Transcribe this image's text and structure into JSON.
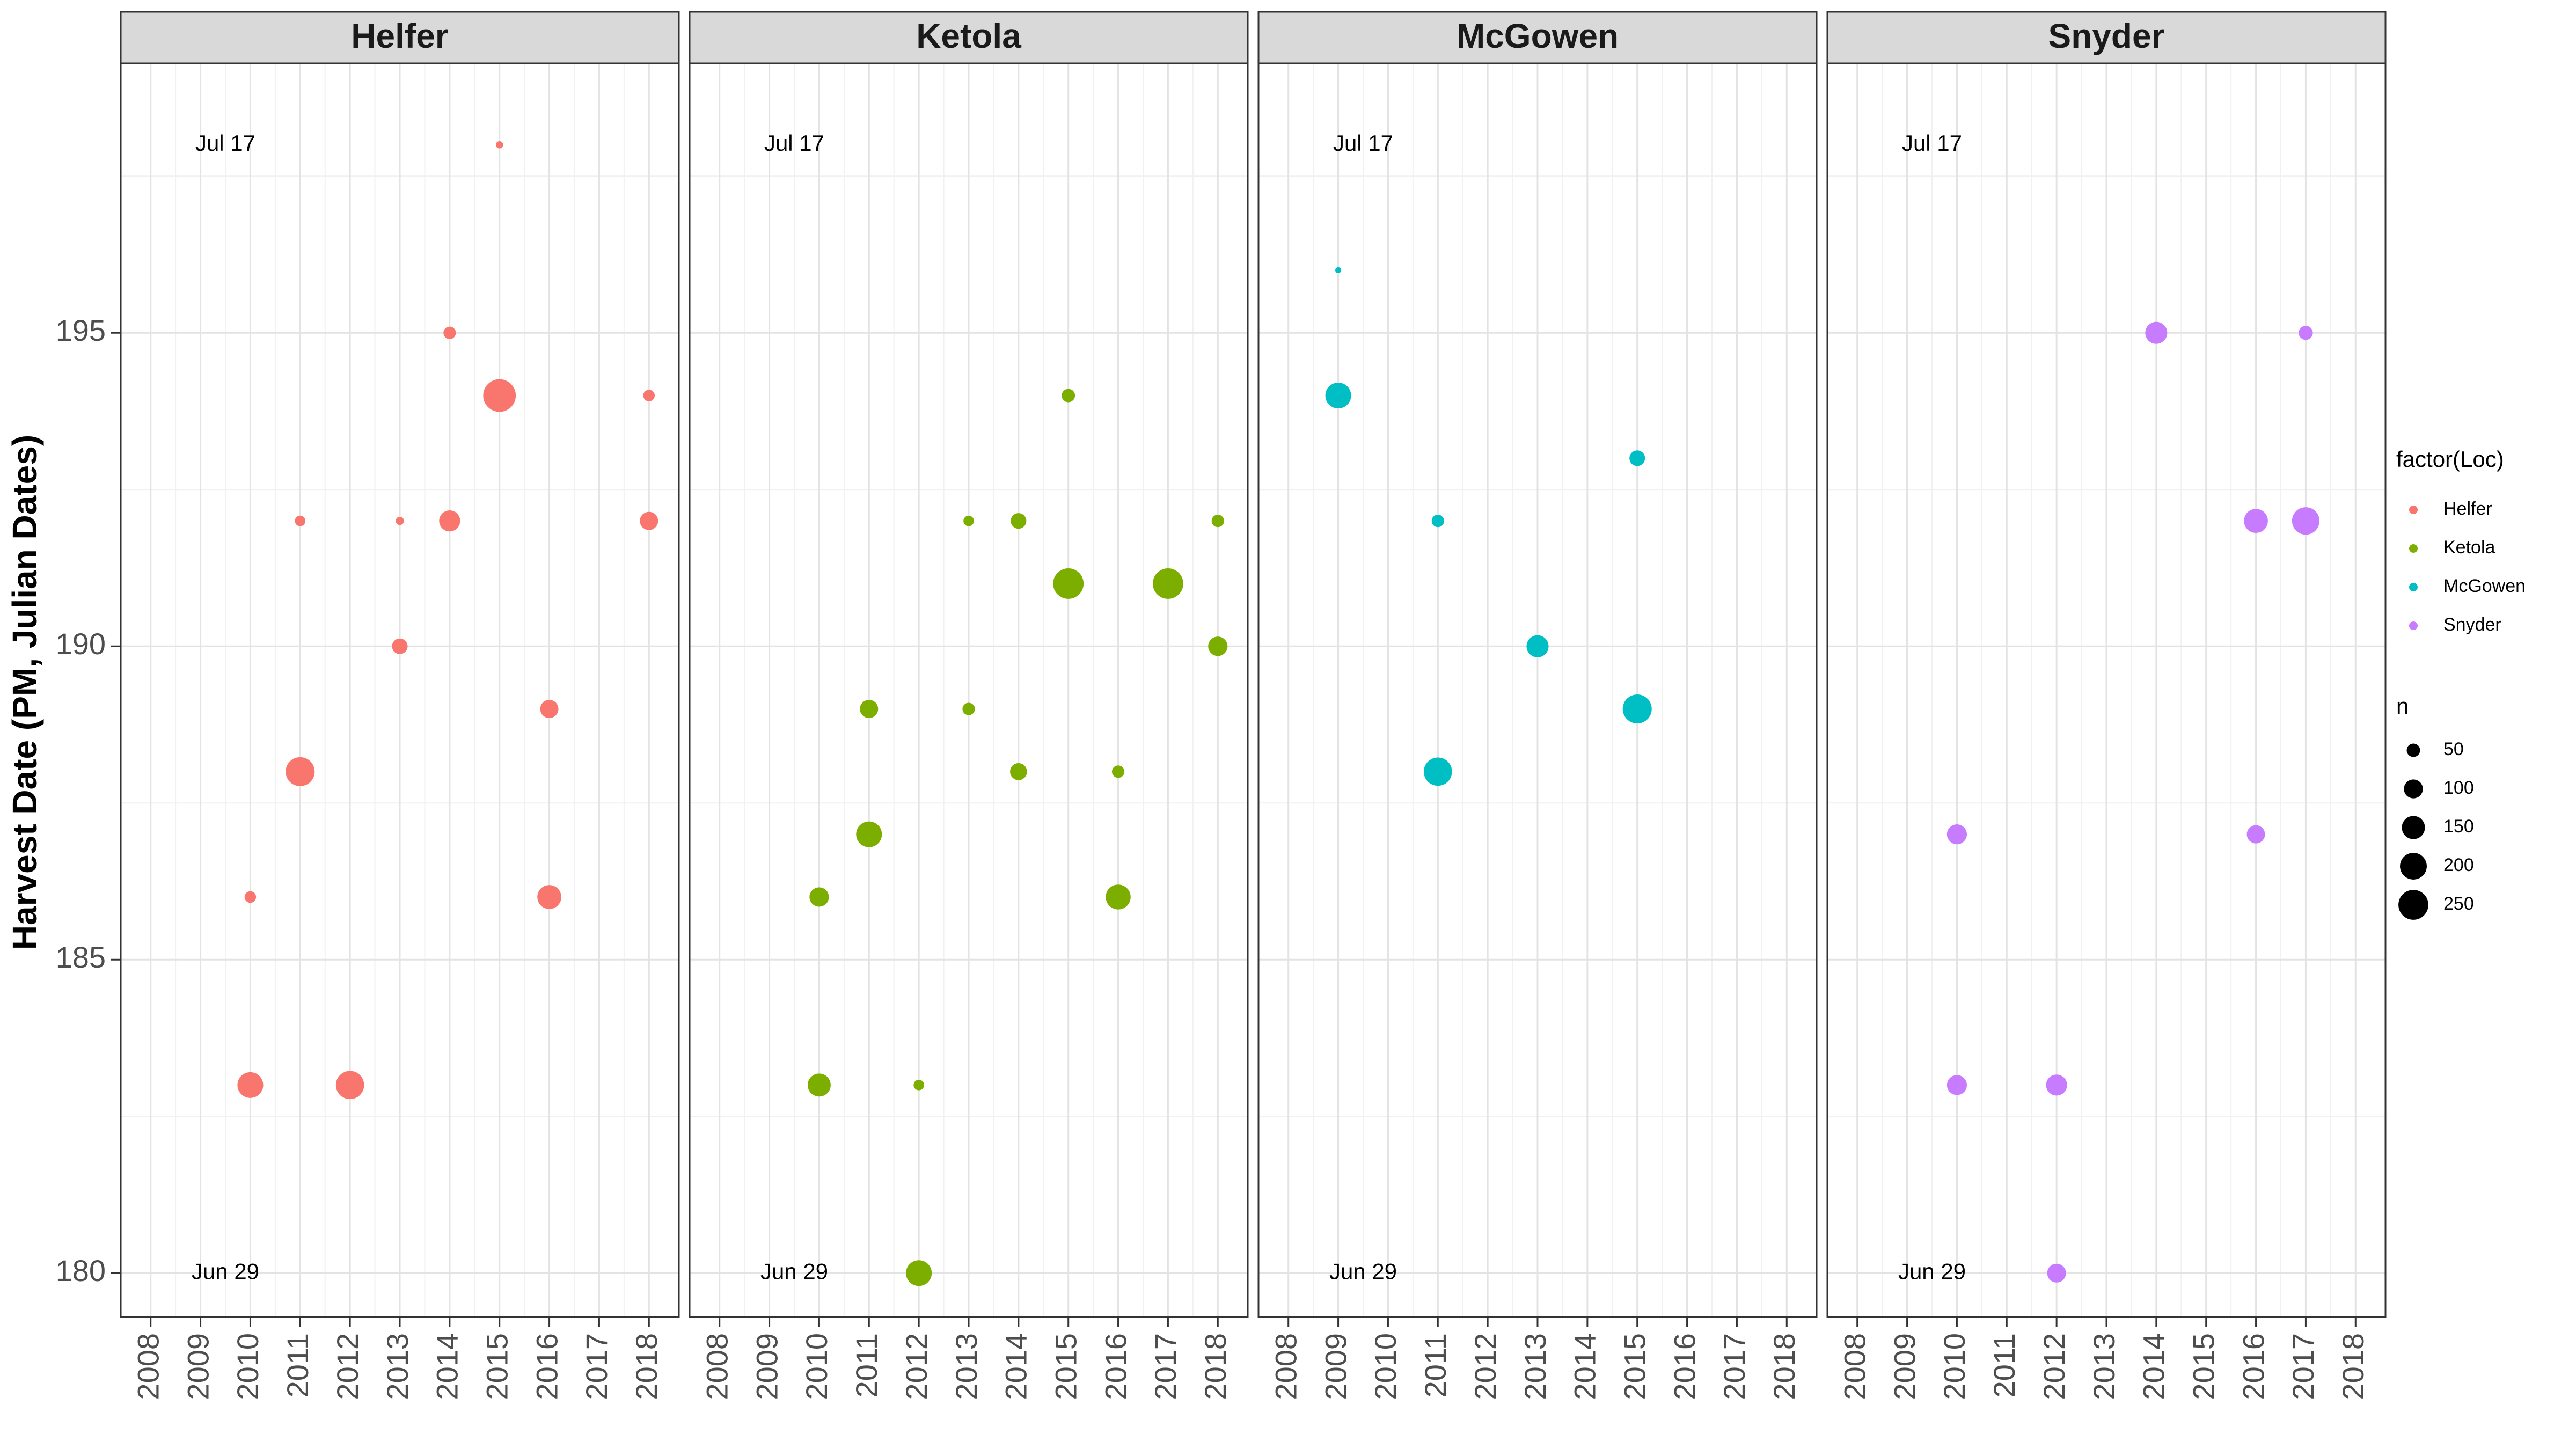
{
  "chart_data": {
    "type": "scatter",
    "ylabel": "Harvest Date (PM, Julian Dates)",
    "xlabel": "",
    "xlim": [
      2007.4,
      2018.6
    ],
    "ylim": [
      179.3,
      199.3
    ],
    "x_ticks": [
      2008,
      2009,
      2010,
      2011,
      2012,
      2013,
      2014,
      2015,
      2016,
      2017,
      2018
    ],
    "y_ticks": [
      180,
      185,
      190,
      195
    ],
    "grid": true,
    "legend_position": "right",
    "annotations": [
      {
        "label": "Jul 17",
        "x": 2009.5,
        "y": 198
      },
      {
        "label": "Jun 29",
        "x": 2009.5,
        "y": 180
      }
    ],
    "panels": [
      {
        "name": "Helfer",
        "color": "#F8766D",
        "points": [
          {
            "x": 2010,
            "y": 183,
            "n": 150
          },
          {
            "x": 2010,
            "y": 186,
            "n": 30
          },
          {
            "x": 2011,
            "y": 188,
            "n": 190
          },
          {
            "x": 2011,
            "y": 192,
            "n": 25
          },
          {
            "x": 2012,
            "y": 183,
            "n": 180
          },
          {
            "x": 2013,
            "y": 190,
            "n": 55
          },
          {
            "x": 2013,
            "y": 192,
            "n": 15
          },
          {
            "x": 2014,
            "y": 192,
            "n": 100
          },
          {
            "x": 2014,
            "y": 195,
            "n": 35
          },
          {
            "x": 2015,
            "y": 194,
            "n": 240
          },
          {
            "x": 2015,
            "y": 198,
            "n": 12
          },
          {
            "x": 2016,
            "y": 189,
            "n": 75
          },
          {
            "x": 2016,
            "y": 186,
            "n": 130
          },
          {
            "x": 2018,
            "y": 192,
            "n": 75
          },
          {
            "x": 2018,
            "y": 194,
            "n": 30
          }
        ]
      },
      {
        "name": "Ketola",
        "color": "#7CAE00",
        "points": [
          {
            "x": 2010,
            "y": 183,
            "n": 120
          },
          {
            "x": 2010,
            "y": 186,
            "n": 85
          },
          {
            "x": 2011,
            "y": 187,
            "n": 150
          },
          {
            "x": 2011,
            "y": 189,
            "n": 75
          },
          {
            "x": 2012,
            "y": 183,
            "n": 25
          },
          {
            "x": 2012,
            "y": 180,
            "n": 150
          },
          {
            "x": 2013,
            "y": 192,
            "n": 25
          },
          {
            "x": 2013,
            "y": 189,
            "n": 35
          },
          {
            "x": 2014,
            "y": 192,
            "n": 55
          },
          {
            "x": 2014,
            "y": 188,
            "n": 65
          },
          {
            "x": 2015,
            "y": 194,
            "n": 40
          },
          {
            "x": 2015,
            "y": 191,
            "n": 210
          },
          {
            "x": 2016,
            "y": 188,
            "n": 35
          },
          {
            "x": 2016,
            "y": 186,
            "n": 140
          },
          {
            "x": 2017,
            "y": 191,
            "n": 210
          },
          {
            "x": 2018,
            "y": 192,
            "n": 35
          },
          {
            "x": 2018,
            "y": 190,
            "n": 85
          }
        ]
      },
      {
        "name": "McGowen",
        "color": "#00BFC4",
        "points": [
          {
            "x": 2009,
            "y": 196,
            "n": 8
          },
          {
            "x": 2009,
            "y": 194,
            "n": 150
          },
          {
            "x": 2011,
            "y": 192,
            "n": 35
          },
          {
            "x": 2011,
            "y": 188,
            "n": 180
          },
          {
            "x": 2013,
            "y": 190,
            "n": 110
          },
          {
            "x": 2015,
            "y": 193,
            "n": 55
          },
          {
            "x": 2015,
            "y": 189,
            "n": 190
          }
        ]
      },
      {
        "name": "Snyder",
        "color": "#C77CFF",
        "points": [
          {
            "x": 2010,
            "y": 187,
            "n": 90
          },
          {
            "x": 2010,
            "y": 183,
            "n": 90
          },
          {
            "x": 2012,
            "y": 183,
            "n": 100
          },
          {
            "x": 2012,
            "y": 180,
            "n": 80
          },
          {
            "x": 2014,
            "y": 195,
            "n": 110
          },
          {
            "x": 2016,
            "y": 192,
            "n": 130
          },
          {
            "x": 2016,
            "y": 187,
            "n": 75
          },
          {
            "x": 2017,
            "y": 195,
            "n": 45
          },
          {
            "x": 2017,
            "y": 192,
            "n": 170
          }
        ]
      }
    ],
    "legend": {
      "color_title": "factor(Loc)",
      "color_entries": [
        {
          "label": "Helfer",
          "color": "#F8766D"
        },
        {
          "label": "Ketola",
          "color": "#7CAE00"
        },
        {
          "label": "McGowen",
          "color": "#00BFC4"
        },
        {
          "label": "Snyder",
          "color": "#C77CFF"
        }
      ],
      "size_title": "n",
      "size_entries": [
        {
          "label": "50",
          "n": 50
        },
        {
          "label": "100",
          "n": 100
        },
        {
          "label": "150",
          "n": 150
        },
        {
          "label": "200",
          "n": 200
        },
        {
          "label": "250",
          "n": 250
        }
      ],
      "size_range_n": [
        0,
        250
      ]
    }
  }
}
